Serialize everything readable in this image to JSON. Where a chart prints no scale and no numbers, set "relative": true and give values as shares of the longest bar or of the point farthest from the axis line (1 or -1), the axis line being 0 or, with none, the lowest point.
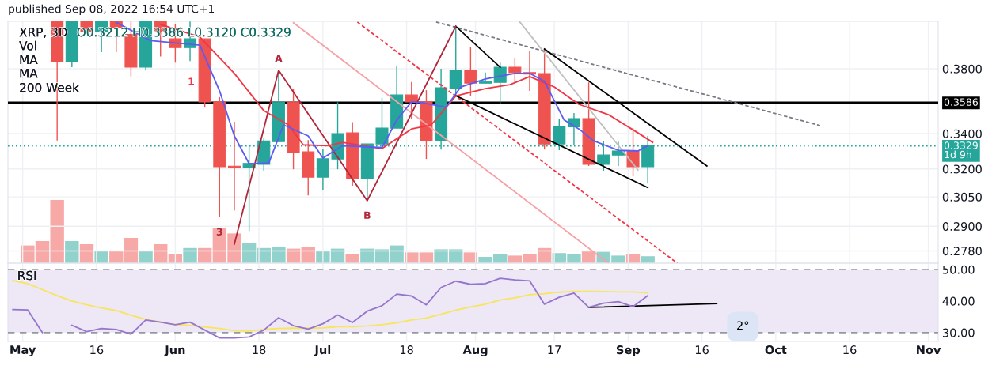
{
  "chart_data": [
    {
      "type": "candlestick",
      "title": "XRP, 3D",
      "subtitle": "O0.3212 H0.3386 L0.3120 C0.3329",
      "x": [
        "2022-05-08",
        "2022-05-11",
        "2022-05-14",
        "2022-05-17",
        "2022-05-20",
        "2022-05-23",
        "2022-05-26",
        "2022-05-29",
        "2022-06-01",
        "2022-06-04",
        "2022-06-07",
        "2022-06-10",
        "2022-06-13",
        "2022-06-16",
        "2022-06-19",
        "2022-06-22",
        "2022-06-25",
        "2022-06-28",
        "2022-07-01",
        "2022-07-04",
        "2022-07-07",
        "2022-07-10",
        "2022-07-13",
        "2022-07-16",
        "2022-07-19",
        "2022-07-22",
        "2022-07-25",
        "2022-07-28",
        "2022-07-31",
        "2022-08-03",
        "2022-08-06",
        "2022-08-09",
        "2022-08-12",
        "2022-08-15",
        "2022-08-18",
        "2022-08-21",
        "2022-08-24",
        "2022-08-27",
        "2022-08-30",
        "2022-09-02",
        "2022-09-05"
      ],
      "ohlc": [
        [
          0.412,
          0.412,
          0.336,
          0.385
        ],
        [
          0.385,
          0.412,
          0.381,
          0.412
        ],
        [
          0.412,
          0.412,
          0.405,
          0.405
        ],
        [
          0.405,
          0.412,
          0.391,
          0.412
        ],
        [
          0.412,
          0.412,
          0.391,
          0.408
        ],
        [
          0.403,
          0.412,
          0.375,
          0.381
        ],
        [
          0.381,
          0.412,
          0.379,
          0.412
        ],
        [
          0.412,
          0.412,
          0.388,
          0.405
        ],
        [
          0.4,
          0.41,
          0.384,
          0.394
        ],
        [
          0.394,
          0.412,
          0.385,
          0.4
        ],
        [
          0.4,
          0.4,
          0.3555,
          0.359
        ],
        [
          0.359,
          0.362,
          0.2945,
          0.3212
        ],
        [
          0.3215,
          0.347,
          0.298,
          0.3205
        ],
        [
          0.321,
          0.333,
          0.2877,
          0.323
        ],
        [
          0.3225,
          0.3371,
          0.319,
          0.3357
        ],
        [
          0.3353,
          0.379,
          0.3353,
          0.3588
        ],
        [
          0.3588,
          0.3668,
          0.3198,
          0.3291
        ],
        [
          0.3295,
          0.3362,
          0.3058,
          0.3155
        ],
        [
          0.3155,
          0.3313,
          0.3088,
          0.3256
        ],
        [
          0.3255,
          0.3588,
          0.3198,
          0.34
        ],
        [
          0.3404,
          0.3467,
          0.3109,
          0.3146
        ],
        [
          0.3146,
          0.334,
          0.303,
          0.334
        ],
        [
          0.334,
          0.3615,
          0.3317,
          0.3432
        ],
        [
          0.3432,
          0.3815,
          0.3432,
          0.3633
        ],
        [
          0.3633,
          0.3714,
          0.3485,
          0.359
        ],
        [
          0.359,
          0.3663,
          0.3255,
          0.3358
        ],
        [
          0.3358,
          0.38,
          0.3308,
          0.3678
        ],
        [
          0.3676,
          0.4087,
          0.3627,
          0.379
        ],
        [
          0.379,
          0.3942,
          0.3627,
          0.3707
        ],
        [
          0.3707,
          0.3775,
          0.3707,
          0.3717
        ],
        [
          0.3712,
          0.3845,
          0.358,
          0.381
        ],
        [
          0.381,
          0.387,
          0.3707,
          0.3775
        ],
        [
          0.3775,
          0.3915,
          0.3658,
          0.3766
        ],
        [
          0.3769,
          0.3931,
          0.3308,
          0.334
        ],
        [
          0.334,
          0.3485,
          0.3304,
          0.3442
        ],
        [
          0.344,
          0.3522,
          0.3331,
          0.3489
        ],
        [
          0.3489,
          0.3712,
          0.3216,
          0.3225
        ],
        [
          0.3225,
          0.3358,
          0.319,
          0.3277
        ],
        [
          0.3277,
          0.3353,
          0.3216,
          0.33
        ],
        [
          0.33,
          0.3432,
          0.3159,
          0.3212
        ],
        [
          0.3212,
          0.3386,
          0.312,
          0.3329
        ]
      ],
      "colors": [
        "#ef5350",
        "#26a69a",
        "#ef5350",
        "#26a69a",
        "#ef5350",
        "#ef5350",
        "#26a69a",
        "#ef5350",
        "#ef5350",
        "#26a69a",
        "#ef5350",
        "#ef5350",
        "#ef5350",
        "#26a69a",
        "#26a69a",
        "#26a69a",
        "#ef5350",
        "#ef5350",
        "#26a69a",
        "#26a69a",
        "#ef5350",
        "#26a69a",
        "#26a69a",
        "#26a69a",
        "#ef5350",
        "#ef5350",
        "#26a69a",
        "#26a69a",
        "#ef5350",
        "#26a69a",
        "#26a69a",
        "#ef5350",
        "#ef5350",
        "#ef5350",
        "#26a69a",
        "#26a69a",
        "#ef5350",
        "#26a69a",
        "#26a69a",
        "#ef5350",
        "#26a69a"
      ],
      "series": [
        {
          "type": "line",
          "color": "#5b5bf5",
          "line_style": "solid",
          "x": [
            "2022-05-20",
            "2022-05-27",
            "2022-06-06",
            "2022-06-10",
            "2022-06-13",
            "2022-06-16",
            "2022-06-20",
            "2022-06-23",
            "2022-06-28",
            "2022-07-01",
            "2022-07-05",
            "2022-07-13",
            "2022-07-16",
            "2022-07-19",
            "2022-07-21",
            "2022-07-26",
            "2022-07-29",
            "2022-08-03",
            "2022-08-09",
            "2022-08-12",
            "2022-08-15",
            "2022-08-19",
            "2022-08-22",
            "2022-08-25",
            "2022-08-30",
            "2022-09-03",
            "2022-09-05"
          ],
          "values": [
            0.4115,
            0.3988,
            0.3957,
            0.3658,
            0.3386,
            0.3229,
            0.3233,
            0.3451,
            0.3386,
            0.326,
            0.333,
            0.3319,
            0.348,
            0.359,
            0.3585,
            0.3557,
            0.3683,
            0.3734,
            0.377,
            0.377,
            0.3719,
            0.348,
            0.3427,
            0.3358,
            0.3304,
            0.33,
            0.333
          ]
        },
        {
          "type": "line",
          "color": "#f23645",
          "line_style": "solid",
          "x": [
            "2022-05-29",
            "2022-06-06",
            "2022-06-13",
            "2022-06-19",
            "2022-06-24",
            "2022-06-27",
            "2022-07-02",
            "2022-07-05",
            "2022-07-13",
            "2022-07-19",
            "2022-07-23",
            "2022-07-28",
            "2022-08-03",
            "2022-08-08",
            "2022-08-12",
            "2022-08-17",
            "2022-08-22",
            "2022-08-28",
            "2022-09-03",
            "2022-09-06"
          ],
          "values": [
            0.41,
            0.4012,
            0.377,
            0.3536,
            0.3451,
            0.3335,
            0.333,
            0.3349,
            0.3313,
            0.3427,
            0.3451,
            0.3627,
            0.3673,
            0.3698,
            0.3749,
            0.3683,
            0.3575,
            0.3512,
            0.3404,
            0.3349
          ]
        },
        {
          "type": "line",
          "color": "#b2263a",
          "line_style": "solid",
          "x": [
            "2022-06-13",
            "2022-06-22",
            "2022-07-10",
            "2022-07-28"
          ],
          "values": [
            0.2812,
            0.379,
            0.303,
            0.4087
          ]
        },
        {
          "type": "line",
          "color": "#000000",
          "line_style": "solid",
          "x": [
            "2022-07-28",
            "2022-08-06"
          ],
          "values": [
            0.4087,
            0.381
          ]
        },
        {
          "type": "line",
          "color": "#000000",
          "line_style": "solid",
          "x": [
            "2022-08-15",
            "2022-09-17"
          ],
          "values": [
            0.3931,
            0.3216
          ]
        },
        {
          "type": "line",
          "color": "#000000",
          "line_style": "solid",
          "x": [
            "2022-07-28",
            "2022-09-05"
          ],
          "values": [
            0.3628,
            0.3099
          ]
        },
        {
          "type": "line",
          "color": "#787b86",
          "line_style": "dashed",
          "x": [
            "2022-07-24",
            "2022-10-10"
          ],
          "values": [
            0.4117,
            0.3447
          ]
        },
        {
          "type": "line",
          "color": "#f7a1a5",
          "line_style": "solid",
          "x": [
            "2022-06-25",
            "2022-08-28"
          ],
          "values": [
            0.4112,
            0.2722
          ]
        },
        {
          "type": "line",
          "color": "#f23645",
          "line_style": "dashed",
          "x": [
            "2022-07-08",
            "2022-09-11"
          ],
          "values": [
            0.4117,
            0.2722
          ]
        },
        {
          "type": "line",
          "color": "#c0c0c0",
          "line_style": "solid",
          "x": [
            "2022-08-10",
            "2022-09-03"
          ],
          "values": [
            0.4117,
            0.3194
          ]
        }
      ],
      "log": true,
      "ylim": [
        0.2722,
        0.4122
      ],
      "yticks": [
        {
          "value": 0.38,
          "label": "0.3800"
        },
        {
          "value": 0.34,
          "label": "0.3400"
        },
        {
          "value": 0.32,
          "label": "0.3200"
        },
        {
          "value": 0.305,
          "label": "0.3050"
        },
        {
          "value": 0.29,
          "label": "0.2900"
        },
        {
          "value": 0.278,
          "label": "0.2780"
        }
      ],
      "xlim": [
        "2022-04-28",
        "2022-11-03"
      ],
      "xticks": [
        {
          "value": "2022-05-01",
          "label": null
        },
        {
          "value": "2022-05-16",
          "label": null
        },
        {
          "value": "2022-06-01",
          "label": null
        },
        {
          "value": "2022-06-18",
          "label": null
        },
        {
          "value": "2022-07-01",
          "label": null
        },
        {
          "value": "2022-07-18",
          "label": null
        },
        {
          "value": "2022-08-01",
          "label": null
        },
        {
          "value": "2022-08-17",
          "label": null
        },
        {
          "value": "2022-09-01",
          "label": null
        },
        {
          "value": "2022-09-16",
          "label": null
        },
        {
          "value": "2022-10-01",
          "label": null
        },
        {
          "value": "2022-10-16",
          "label": null
        },
        {
          "value": "2022-11-01",
          "label": null
        }
      ],
      "tick_labels": "y",
      "grid": true,
      "ref_lines": [
        {
          "axis": "y",
          "value": 0.3586,
          "label": "0.3586",
          "color": "#000000",
          "line_style": "solid"
        },
        {
          "axis": "y",
          "value": 0.3329,
          "label": "0.3329\n1d 9h",
          "color": "#26a69a",
          "line_style": "dotted"
        }
      ],
      "annotations": [
        "published Sep 08, 2022 16:54 UTC+1",
        "Vol",
        "MA",
        "MA",
        "200 Week",
        "1",
        {
          "text": "A",
          "x": "2022-06-22",
          "y": 0.379
        },
        {
          "text": "B",
          "x": "2022-07-10",
          "y": 0.303
        },
        {
          "text": "3",
          "x": "2022-06-10",
          "y": 0.2945
        }
      ]
    },
    {
      "type": "bar",
      "relative": true,
      "tick_labels": false,
      "x": [
        "2022-05-02",
        "2022-05-05",
        "2022-05-08",
        "2022-05-11",
        "2022-05-14",
        "2022-05-17",
        "2022-05-20",
        "2022-05-23",
        "2022-05-26",
        "2022-05-29",
        "2022-06-01",
        "2022-06-04",
        "2022-06-07",
        "2022-06-10",
        "2022-06-13",
        "2022-06-16",
        "2022-06-19",
        "2022-06-22",
        "2022-06-25",
        "2022-06-28",
        "2022-07-01",
        "2022-07-04",
        "2022-07-07",
        "2022-07-10",
        "2022-07-13",
        "2022-07-16",
        "2022-07-19",
        "2022-07-22",
        "2022-07-25",
        "2022-07-28",
        "2022-07-31",
        "2022-08-03",
        "2022-08-06",
        "2022-08-09",
        "2022-08-12",
        "2022-08-15",
        "2022-08-18",
        "2022-08-21",
        "2022-08-24",
        "2022-08-27",
        "2022-08-30",
        "2022-09-02",
        "2022-09-05"
      ],
      "values": [
        0.28,
        0.35,
        1,
        0.35,
        0.3,
        0.2,
        0.19,
        0.4,
        0.2,
        0.3,
        0.14,
        0.24,
        0.24,
        0.55,
        0.47,
        0.32,
        0.24,
        0.26,
        0.23,
        0.26,
        0.2,
        0.23,
        0.15,
        0.23,
        0.22,
        0.28,
        0.17,
        0.17,
        0.22,
        0.22,
        0.17,
        0.1,
        0.15,
        0.12,
        0.15,
        0.24,
        0.16,
        0.15,
        0.19,
        0.18,
        0.12,
        0.15,
        0.11
      ],
      "colors": [
        "#f7a9a7",
        "#f7a9a7",
        "#f7a9a7",
        "#92d2cc",
        "#f7a9a7",
        "#92d2cc",
        "#f7a9a7",
        "#f7a9a7",
        "#92d2cc",
        "#f7a9a7",
        "#f7a9a7",
        "#92d2cc",
        "#f7a9a7",
        "#f7a9a7",
        "#f7a9a7",
        "#92d2cc",
        "#92d2cc",
        "#92d2cc",
        "#f7a9a7",
        "#f7a9a7",
        "#92d2cc",
        "#92d2cc",
        "#f7a9a7",
        "#92d2cc",
        "#92d2cc",
        "#92d2cc",
        "#f7a9a7",
        "#f7a9a7",
        "#92d2cc",
        "#92d2cc",
        "#f7a9a7",
        "#92d2cc",
        "#92d2cc",
        "#f7a9a7",
        "#f7a9a7",
        "#f7a9a7",
        "#92d2cc",
        "#92d2cc",
        "#f7a9a7",
        "#92d2cc",
        "#92d2cc",
        "#f7a9a7",
        "#92d2cc"
      ],
      "xlim": [
        "2022-04-28",
        "2022-11-03"
      ]
    },
    {
      "type": "line",
      "title": "RSI",
      "x": [
        "2022-04-29",
        "2022-05-02",
        "2022-05-05",
        "2022-05-08",
        "2022-05-11",
        "2022-05-14",
        "2022-05-17",
        "2022-05-20",
        "2022-05-23",
        "2022-05-26",
        "2022-05-29",
        "2022-06-01",
        "2022-06-04",
        "2022-06-07",
        "2022-06-10",
        "2022-06-13",
        "2022-06-16",
        "2022-06-19",
        "2022-06-22",
        "2022-06-25",
        "2022-06-28",
        "2022-07-01",
        "2022-07-04",
        "2022-07-07",
        "2022-07-10",
        "2022-07-13",
        "2022-07-16",
        "2022-07-19",
        "2022-07-22",
        "2022-07-25",
        "2022-07-28",
        "2022-07-31",
        "2022-08-03",
        "2022-08-06",
        "2022-08-09",
        "2022-08-12",
        "2022-08-15",
        "2022-08-18",
        "2022-08-21",
        "2022-08-24",
        "2022-08-27",
        "2022-08-30",
        "2022-09-02",
        "2022-09-05"
      ],
      "series": [
        {
          "color": "#9575cd",
          "values": [
            37.3,
            37.2,
            30.0,
            null,
            32.3,
            30.3,
            31.3,
            31.0,
            29.5,
            34.0,
            33.3,
            32.5,
            33.3,
            30.8,
            28.3,
            28.3,
            28.6,
            30.8,
            34.7,
            32.2,
            31.1,
            32.8,
            35.6,
            33.2,
            36.8,
            38.5,
            42.2,
            41.6,
            38.8,
            44.3,
            46.3,
            45.3,
            45.5,
            47.2,
            46.7,
            46.4,
            39.0,
            41.2,
            42.5,
            38.0,
            39.3,
            39.8,
            38.2,
            41.7
          ]
        },
        {
          "color": "#f7e55a",
          "values": [
            46.5,
            45.5,
            43.6,
            41.7,
            40.0,
            38.8,
            37.8,
            37.0,
            35.5,
            34.2,
            33.3,
            32.5,
            32.3,
            31.8,
            31.3,
            30.6,
            30.5,
            31.0,
            31.3,
            31.4,
            31.4,
            31.5,
            31.9,
            31.9,
            32.1,
            32.5,
            33.1,
            34.0,
            34.6,
            35.8,
            37.1,
            38.1,
            39.0,
            40.3,
            41.0,
            42.0,
            42.3,
            42.8,
            43.1,
            43.1,
            43.0,
            42.9,
            42.9,
            42.6
          ]
        },
        {
          "color": "#000000",
          "x": [
            "2022-08-24",
            "2022-09-19"
          ],
          "values": [
            38.0,
            39.2
          ]
        }
      ],
      "ylim": [
        27.2,
        52.0
      ],
      "yticks": [
        {
          "value": 30,
          "label": "30.00"
        },
        {
          "value": 40,
          "label": "40.00"
        },
        {
          "value": 50,
          "label": "50.00"
        }
      ],
      "xlim": [
        "2022-04-28",
        "2022-11-03"
      ],
      "xticks": [
        {
          "value": "2022-05-01",
          "label": "May"
        },
        {
          "value": "2022-05-16",
          "label": "16"
        },
        {
          "value": "2022-06-01",
          "label": "Jun"
        },
        {
          "value": "2022-06-18",
          "label": "18"
        },
        {
          "value": "2022-07-01",
          "label": "Jul"
        },
        {
          "value": "2022-07-18",
          "label": "18"
        },
        {
          "value": "2022-08-01",
          "label": "Aug"
        },
        {
          "value": "2022-08-17",
          "label": "17"
        },
        {
          "value": "2022-09-01",
          "label": "Sep"
        },
        {
          "value": "2022-09-16",
          "label": "16"
        },
        {
          "value": "2022-10-01",
          "label": "Oct"
        },
        {
          "value": "2022-10-16",
          "label": "16"
        },
        {
          "value": "2022-11-01",
          "label": "Nov"
        }
      ],
      "grid": true,
      "ref_lines": [
        {
          "axis": "y",
          "value": 30,
          "label": null,
          "color": "#9598a1",
          "line_style": "dashed"
        },
        {
          "axis": "y",
          "value": 50,
          "label": null,
          "color": "#9598a1",
          "line_style": "dashed"
        }
      ],
      "bands": [
        {
          "axis": "y",
          "from": 30,
          "to": 50,
          "label": null,
          "color": "#ede7f6"
        }
      ],
      "annotations": [
        "2°"
      ]
    }
  ]
}
